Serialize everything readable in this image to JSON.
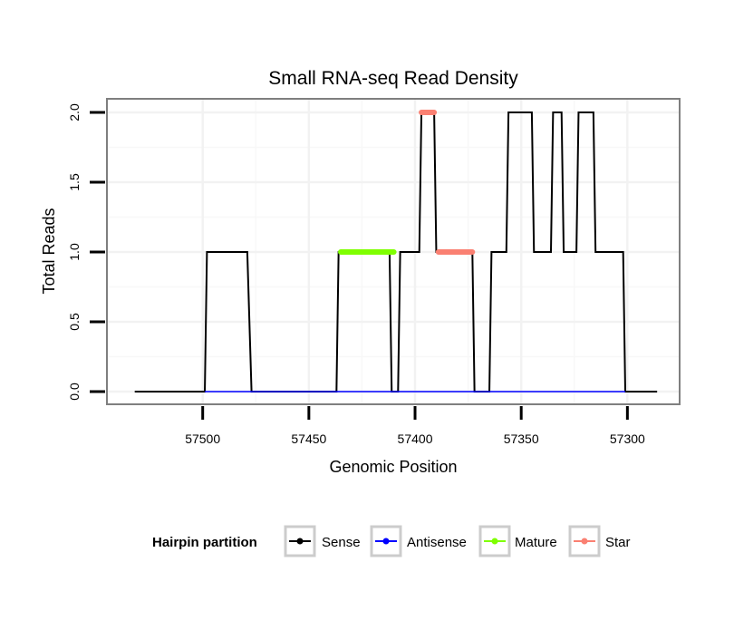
{
  "colors": {
    "background": "#ffffff",
    "grid_major": "#f2f2f2",
    "grid_minor": "#f8f8f8",
    "frame": "#7f7f7f",
    "sense": "#000000",
    "antisense": "#0000ff",
    "mature": "#7fff00",
    "star": "#fa8072",
    "legend_key_border": "#cccccc"
  },
  "chart_data": {
    "type": "line",
    "title": "Small RNA-seq Read Density",
    "xlabel": "Genomic Position",
    "ylabel": "Total Reads",
    "x_reversed": true,
    "xlim": [
      57545,
      57275
    ],
    "ylim": [
      -0.05,
      2.06
    ],
    "x_ticks": [
      57500,
      57450,
      57400,
      57350,
      57300
    ],
    "x_tick_labels": [
      "57500",
      "57450",
      "57400",
      "57350",
      "57300"
    ],
    "y_ticks": [
      0,
      0.5,
      1,
      1.5,
      2
    ],
    "y_tick_labels": [
      "0.0",
      "0.5",
      "1.0",
      "1.5",
      "2.0"
    ],
    "series": [
      {
        "name": "Sense",
        "color_key": "sense",
        "points": [
          [
            57532,
            0
          ],
          [
            57499,
            0
          ],
          [
            57498,
            1
          ],
          [
            57479,
            1
          ],
          [
            57477,
            0
          ],
          [
            57437,
            0
          ],
          [
            57436,
            1
          ],
          [
            57412,
            1
          ],
          [
            57411,
            0
          ],
          [
            57408,
            0
          ],
          [
            57407,
            1
          ],
          [
            57398,
            1
          ],
          [
            57397,
            2
          ],
          [
            57391,
            2
          ],
          [
            57390,
            1
          ],
          [
            57373,
            1
          ],
          [
            57372,
            0
          ],
          [
            57365,
            0
          ],
          [
            57364,
            1
          ],
          [
            57357,
            1
          ],
          [
            57356,
            2
          ],
          [
            57345,
            2
          ],
          [
            57344,
            1
          ],
          [
            57336,
            1
          ],
          [
            57335,
            2
          ],
          [
            57331,
            2
          ],
          [
            57330,
            1
          ],
          [
            57324,
            1
          ],
          [
            57323,
            2
          ],
          [
            57316,
            2
          ],
          [
            57315,
            1
          ],
          [
            57302,
            1
          ],
          [
            57301,
            0
          ],
          [
            57286,
            0
          ]
        ]
      },
      {
        "name": "Antisense",
        "color_key": "antisense",
        "points": [
          [
            57499,
            0
          ],
          [
            57301,
            0
          ]
        ]
      },
      {
        "name": "Mature",
        "color_key": "mature",
        "points": [
          [
            57435,
            1
          ],
          [
            57410,
            1
          ]
        ]
      },
      {
        "name": "Star",
        "color_key": "star",
        "points": [
          [
            57397,
            2
          ],
          [
            57391,
            2
          ]
        ]
      },
      {
        "name": "Star",
        "color_key": "star",
        "points": [
          [
            57389,
            1
          ],
          [
            57373,
            1
          ]
        ]
      }
    ],
    "legend": {
      "title": "Hairpin partition",
      "position": "bottom",
      "entries": [
        {
          "label": "Sense",
          "color_key": "sense"
        },
        {
          "label": "Antisense",
          "color_key": "antisense"
        },
        {
          "label": "Mature",
          "color_key": "mature"
        },
        {
          "label": "Star",
          "color_key": "star"
        }
      ]
    }
  }
}
